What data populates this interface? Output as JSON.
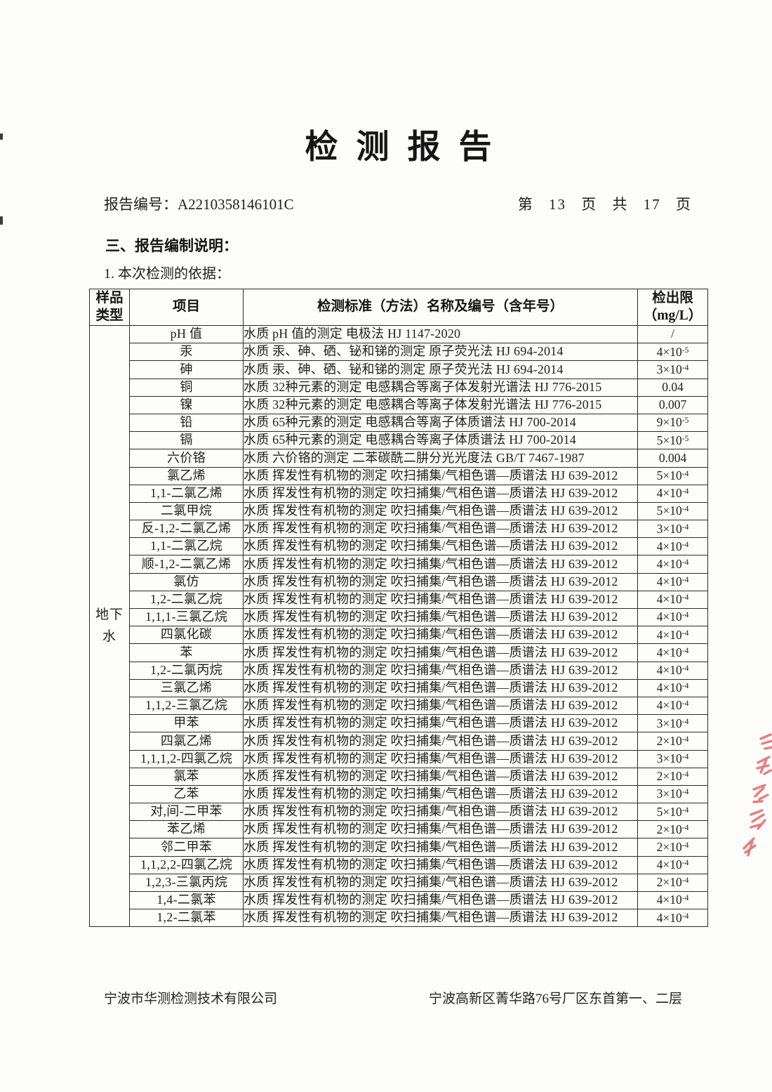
{
  "page": {
    "title": "检测报告",
    "report_no_label": "报告编号：",
    "report_no": "A2210358146101C",
    "page_info": "第 13 页 共 17 页",
    "section_heading": "三、报告编制说明：",
    "subsection_heading": "1. 本次检测的依据：",
    "footer_left": "宁波市华测检测技术有限公司",
    "footer_right": "宁波高新区菁华路76号厂区东首第一、二层"
  },
  "colors": {
    "seal_red": "#e05f5f",
    "ink": "#1e1e1e"
  },
  "table": {
    "headers": {
      "sample_type": "样品类型",
      "item": "项目",
      "standard": "检测标准（方法）名称及编号（含年号）",
      "limit_line1": "检出限",
      "limit_line2": "（mg/L）"
    },
    "sample_type": "地下水",
    "rows": [
      {
        "item": "pH 值",
        "standard": "水质  pH 值的测定  电极法  HJ 1147-2020",
        "limit": "/"
      },
      {
        "item": "汞",
        "standard": "水质  汞、砷、硒、铋和锑的测定  原子荧光法  HJ 694-2014",
        "limit": "4×10",
        "limit_exp": "-5"
      },
      {
        "item": "砷",
        "standard": "水质  汞、砷、硒、铋和锑的测定  原子荧光法  HJ 694-2014",
        "limit": "3×10",
        "limit_exp": "-4"
      },
      {
        "item": "铜",
        "standard": "水质  32种元素的测定  电感耦合等离子体发射光谱法  HJ 776-2015",
        "limit": "0.04"
      },
      {
        "item": "镍",
        "standard": "水质  32种元素的测定  电感耦合等离子体发射光谱法  HJ 776-2015",
        "limit": "0.007"
      },
      {
        "item": "铅",
        "standard": "水质  65种元素的测定  电感耦合等离子体质谱法 HJ 700-2014",
        "limit": "9×10",
        "limit_exp": "-5"
      },
      {
        "item": "镉",
        "standard": "水质  65种元素的测定  电感耦合等离子体质谱法 HJ 700-2014",
        "limit": "5×10",
        "limit_exp": "-5"
      },
      {
        "item": "六价铬",
        "standard": "水质  六价铬的测定  二苯碳酰二肼分光光度法  GB/T 7467-1987",
        "limit": "0.004"
      },
      {
        "item": "氯乙烯",
        "standard": "水质  挥发性有机物的测定  吹扫捕集/气相色谱—质谱法  HJ 639-2012",
        "limit": "5×10",
        "limit_exp": "-4"
      },
      {
        "item": "1,1-二氯乙烯",
        "standard": "水质  挥发性有机物的测定  吹扫捕集/气相色谱—质谱法  HJ 639-2012",
        "limit": "4×10",
        "limit_exp": "-4"
      },
      {
        "item": "二氯甲烷",
        "standard": "水质  挥发性有机物的测定  吹扫捕集/气相色谱—质谱法  HJ 639-2012",
        "limit": "5×10",
        "limit_exp": "-4"
      },
      {
        "item": "反-1,2-二氯乙烯",
        "standard": "水质  挥发性有机物的测定  吹扫捕集/气相色谱—质谱法  HJ 639-2012",
        "limit": "3×10",
        "limit_exp": "-4"
      },
      {
        "item": "1,1-二氯乙烷",
        "standard": "水质  挥发性有机物的测定  吹扫捕集/气相色谱—质谱法  HJ 639-2012",
        "limit": "4×10",
        "limit_exp": "-4"
      },
      {
        "item": "顺-1,2-二氯乙烯",
        "standard": "水质  挥发性有机物的测定  吹扫捕集/气相色谱—质谱法  HJ 639-2012",
        "limit": "4×10",
        "limit_exp": "-4"
      },
      {
        "item": "氯仿",
        "standard": "水质  挥发性有机物的测定  吹扫捕集/气相色谱—质谱法  HJ 639-2012",
        "limit": "4×10",
        "limit_exp": "-4"
      },
      {
        "item": "1,2-二氯乙烷",
        "standard": "水质  挥发性有机物的测定  吹扫捕集/气相色谱—质谱法  HJ 639-2012",
        "limit": "4×10",
        "limit_exp": "-4"
      },
      {
        "item": "1,1,1-三氯乙烷",
        "standard": "水质  挥发性有机物的测定  吹扫捕集/气相色谱—质谱法  HJ 639-2012",
        "limit": "4×10",
        "limit_exp": "-4"
      },
      {
        "item": "四氯化碳",
        "standard": "水质  挥发性有机物的测定  吹扫捕集/气相色谱—质谱法  HJ 639-2012",
        "limit": "4×10",
        "limit_exp": "-4"
      },
      {
        "item": "苯",
        "standard": "水质  挥发性有机物的测定  吹扫捕集/气相色谱—质谱法  HJ 639-2012",
        "limit": "4×10",
        "limit_exp": "-4"
      },
      {
        "item": "1,2-二氯丙烷",
        "standard": "水质  挥发性有机物的测定  吹扫捕集/气相色谱—质谱法  HJ 639-2012",
        "limit": "4×10",
        "limit_exp": "-4"
      },
      {
        "item": "三氯乙烯",
        "standard": "水质  挥发性有机物的测定  吹扫捕集/气相色谱—质谱法  HJ 639-2012",
        "limit": "4×10",
        "limit_exp": "-4"
      },
      {
        "item": "1,1,2-三氯乙烷",
        "standard": "水质  挥发性有机物的测定  吹扫捕集/气相色谱—质谱法  HJ 639-2012",
        "limit": "4×10",
        "limit_exp": "-4"
      },
      {
        "item": "甲苯",
        "standard": "水质  挥发性有机物的测定  吹扫捕集/气相色谱—质谱法  HJ 639-2012",
        "limit": "3×10",
        "limit_exp": "-4"
      },
      {
        "item": "四氯乙烯",
        "standard": "水质  挥发性有机物的测定  吹扫捕集/气相色谱—质谱法  HJ 639-2012",
        "limit": "2×10",
        "limit_exp": "-4"
      },
      {
        "item": "1,1,1,2-四氯乙烷",
        "standard": "水质  挥发性有机物的测定  吹扫捕集/气相色谱—质谱法  HJ 639-2012",
        "limit": "3×10",
        "limit_exp": "-4"
      },
      {
        "item": "氯苯",
        "standard": "水质  挥发性有机物的测定  吹扫捕集/气相色谱—质谱法  HJ 639-2012",
        "limit": "2×10",
        "limit_exp": "-4"
      },
      {
        "item": "乙苯",
        "standard": "水质  挥发性有机物的测定  吹扫捕集/气相色谱—质谱法  HJ 639-2012",
        "limit": "3×10",
        "limit_exp": "-4"
      },
      {
        "item": "对,间-二甲苯",
        "standard": "水质  挥发性有机物的测定  吹扫捕集/气相色谱—质谱法  HJ 639-2012",
        "limit": "5×10",
        "limit_exp": "-4"
      },
      {
        "item": "苯乙烯",
        "standard": "水质  挥发性有机物的测定  吹扫捕集/气相色谱—质谱法  HJ 639-2012",
        "limit": "2×10",
        "limit_exp": "-4"
      },
      {
        "item": "邻二甲苯",
        "standard": "水质  挥发性有机物的测定  吹扫捕集/气相色谱—质谱法  HJ 639-2012",
        "limit": "2×10",
        "limit_exp": "-4"
      },
      {
        "item": "1,1,2,2-四氯乙烷",
        "standard": "水质  挥发性有机物的测定  吹扫捕集/气相色谱—质谱法  HJ 639-2012",
        "limit": "4×10",
        "limit_exp": "-4"
      },
      {
        "item": "1,2,3-三氯丙烷",
        "standard": "水质  挥发性有机物的测定  吹扫捕集/气相色谱—质谱法  HJ 639-2012",
        "limit": "2×10",
        "limit_exp": "-4"
      },
      {
        "item": "1,4-二氯苯",
        "standard": "水质  挥发性有机物的测定  吹扫捕集/气相色谱—质谱法  HJ 639-2012",
        "limit": "4×10",
        "limit_exp": "-4"
      },
      {
        "item": "1,2-二氯苯",
        "standard": "水质  挥发性有机物的测定  吹扫捕集/气相色谱—质谱法  HJ 639-2012",
        "limit": "4×10",
        "limit_exp": "-4"
      }
    ]
  }
}
